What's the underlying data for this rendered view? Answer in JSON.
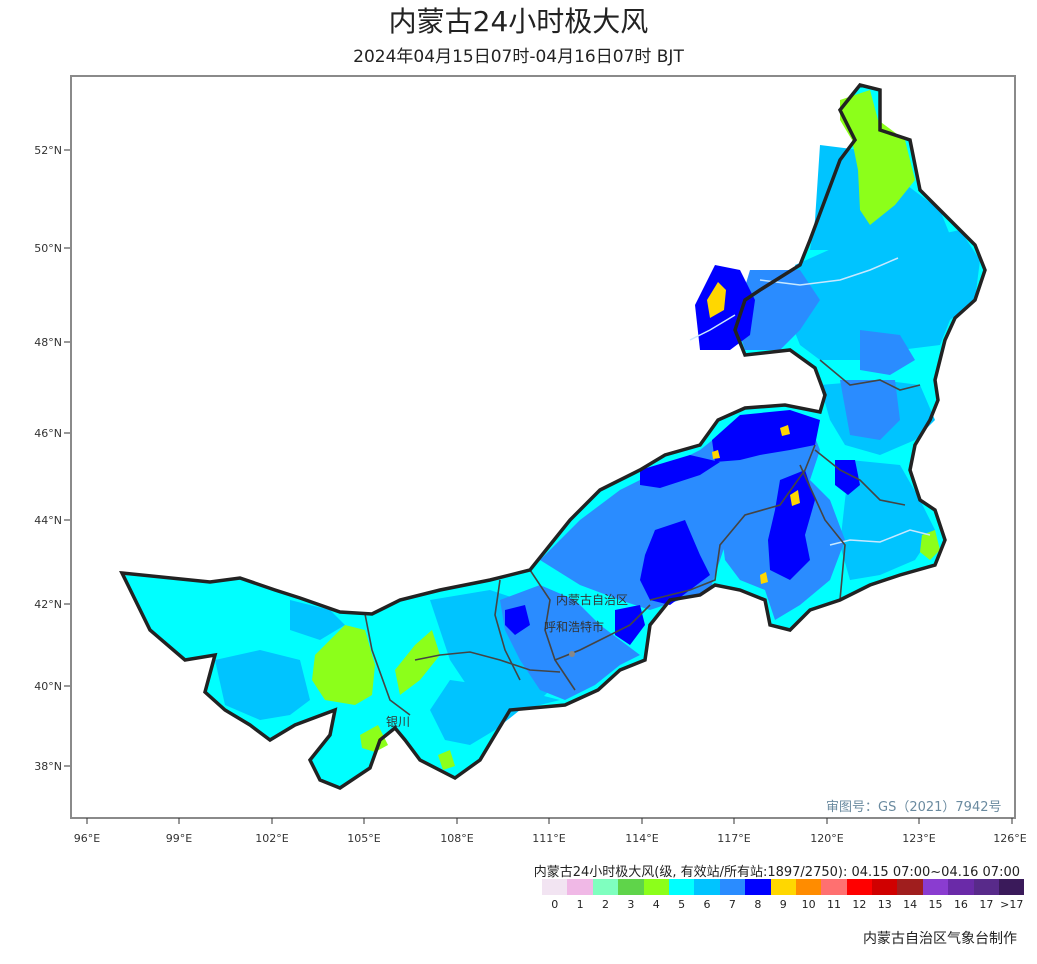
{
  "title": "内蒙古24小时极大风",
  "subtitle": "2024年04月15日07时-04月16日07时 BJT",
  "lon_ticks": [
    "96°E",
    "99°E",
    "102°E",
    "105°E",
    "108°E",
    "111°E",
    "114°E",
    "117°E",
    "120°E",
    "123°E",
    "126°E"
  ],
  "lat_ticks": [
    "52°N",
    "50°N",
    "48°N",
    "46°N",
    "44°N",
    "42°N",
    "40°N",
    "38°N"
  ],
  "labels": {
    "region": "内蒙古自治区",
    "capital": "呼和浩特市",
    "yinchuan": "银川"
  },
  "approval": "审图号：GS（2021）7942号",
  "legend": {
    "title": "内蒙古24小时极大风(级, 有效站/所有站:1897/2750): 04.15 07:00~04.16 07:00",
    "levels": [
      {
        "label": "0",
        "color": "#f2e4f2"
      },
      {
        "label": "1",
        "color": "#f0b8e6"
      },
      {
        "label": "2",
        "color": "#7fffbf"
      },
      {
        "label": "3",
        "color": "#5fd44a"
      },
      {
        "label": "4",
        "color": "#8cff1a"
      },
      {
        "label": "5",
        "color": "#00ffff"
      },
      {
        "label": "6",
        "color": "#00c4ff"
      },
      {
        "label": "7",
        "color": "#2a8cff"
      },
      {
        "label": "8",
        "color": "#0000ff"
      },
      {
        "label": "9",
        "color": "#ffd700"
      },
      {
        "label": "10",
        "color": "#ff8c00"
      },
      {
        "label": "11",
        "color": "#ff7070"
      },
      {
        "label": "12",
        "color": "#ff0000"
      },
      {
        "label": "13",
        "color": "#d00000"
      },
      {
        "label": "14",
        "color": "#a01e1e"
      },
      {
        "label": "15",
        "color": "#8a3cd0"
      },
      {
        "label": "16",
        "color": "#6a2aa8"
      },
      {
        "label": "17",
        "color": "#582a8a"
      },
      {
        "label": ">17",
        "color": "#3a1a5a"
      }
    ]
  },
  "credit": "内蒙古自治区气象台制作"
}
